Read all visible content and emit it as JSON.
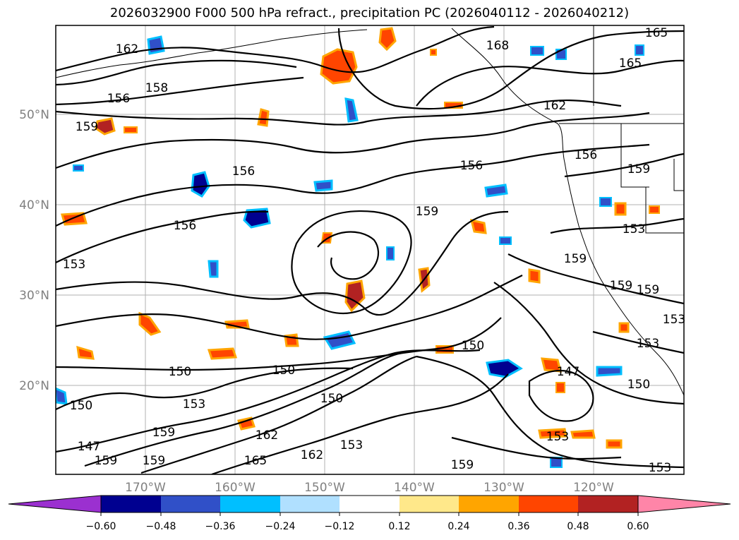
{
  "title": "2026032900 F000 500 hPa refract., precipitation PC (2026040112 - 2026040212)",
  "lat_labels": [
    "50°N",
    "40°N",
    "30°N",
    "20°N"
  ],
  "lon_labels": [
    "170°W",
    "160°W",
    "150°W",
    "140°W",
    "130°W",
    "120°W"
  ],
  "contour_labels": [
    "162",
    "168",
    "165",
    "165",
    "156",
    "158",
    "159",
    "156",
    "156",
    "162",
    "156",
    "159",
    "153",
    "159",
    "153",
    "156",
    "159",
    "159",
    "159",
    "153",
    "150",
    "150",
    "150",
    "147",
    "150",
    "153",
    "150",
    "159",
    "159",
    "162",
    "162",
    "153",
    "159",
    "153",
    "165",
    "147",
    "159",
    "153",
    "153",
    "150"
  ],
  "colorbar": {
    "ticks": [
      "−0.60",
      "−0.48",
      "−0.36",
      "−0.24",
      "−0.12",
      "0.12",
      "0.24",
      "0.36",
      "0.48",
      "0.60"
    ],
    "colors": [
      "#9b30d0",
      "#000090",
      "#3050c8",
      "#00bfff",
      "#b0e0ff",
      "#ffffff",
      "#ffe88a",
      "#ffa500",
      "#ff4500",
      "#b22222",
      "#ff85a8"
    ]
  },
  "colors": {
    "contour": "#000000",
    "grid": "#b0b0b0",
    "coast": "#000000"
  }
}
